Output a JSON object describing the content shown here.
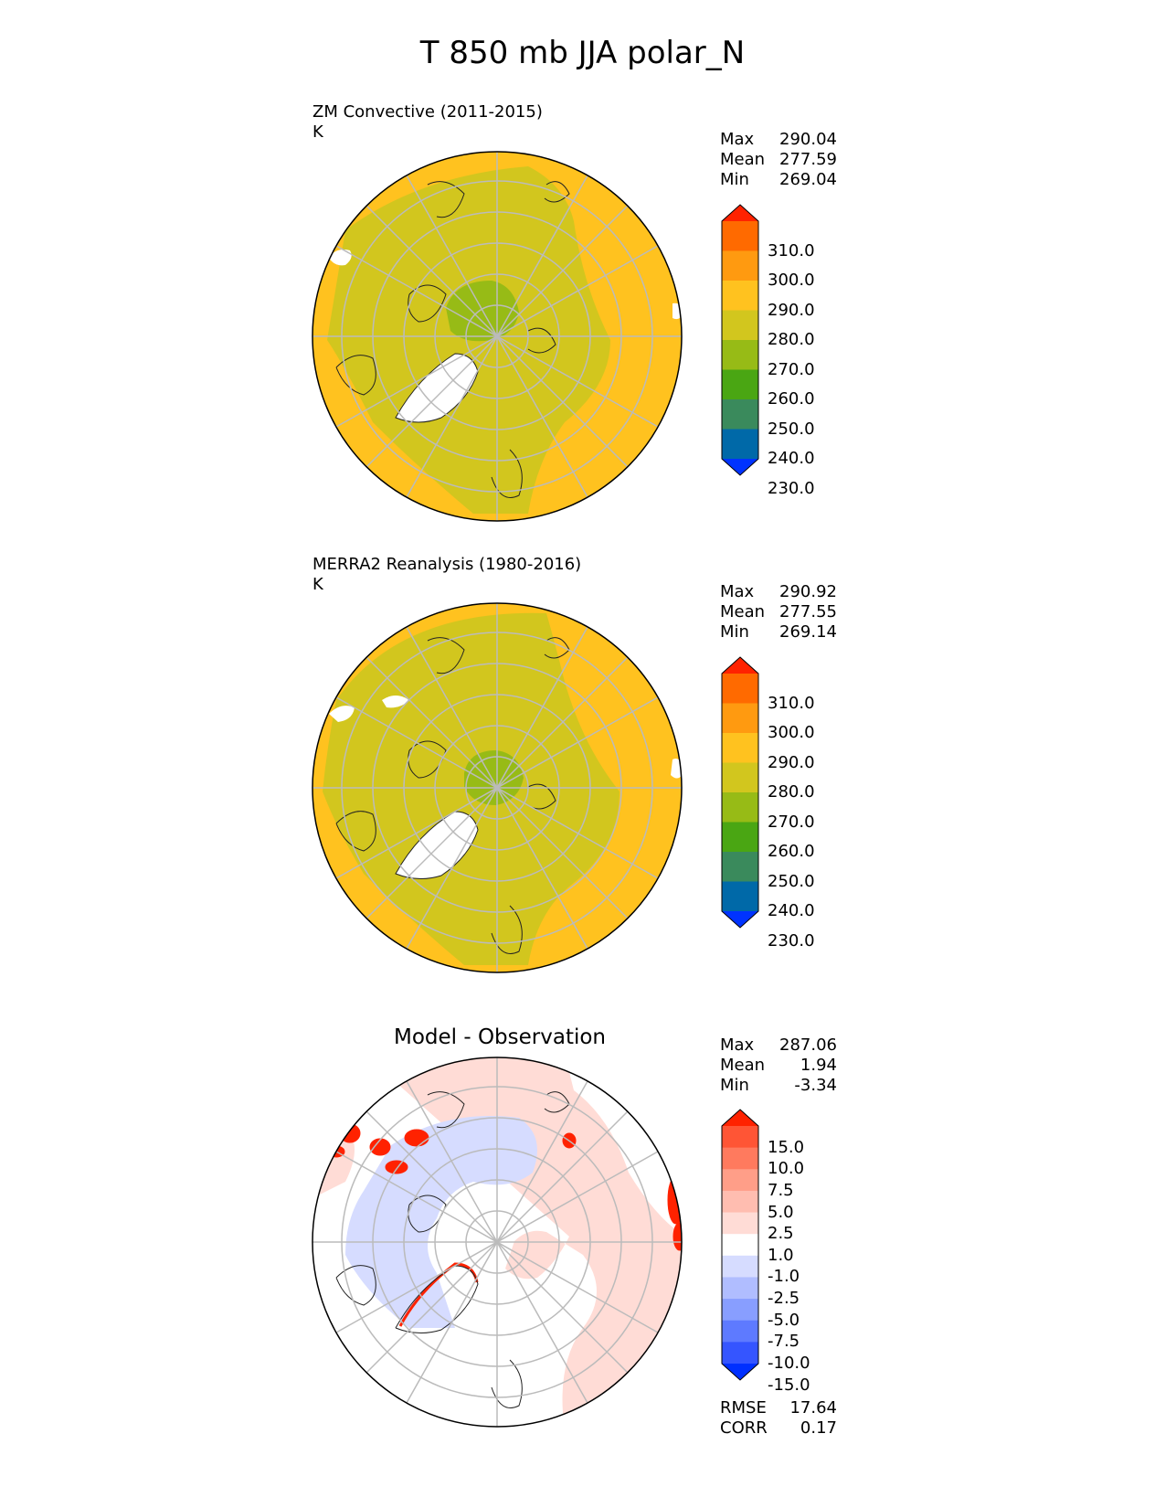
{
  "title": "T 850 mb JJA polar_N",
  "panels": [
    {
      "label": "ZM Convective (2011-2015)",
      "units": "K",
      "stats": [
        {
          "name": "Max",
          "value": "290.04"
        },
        {
          "name": "Mean",
          "value": "277.59"
        },
        {
          "name": "Min",
          "value": "269.04"
        }
      ],
      "colorbar": {
        "ticks": [
          "310.0",
          "300.0",
          "290.0",
          "280.0",
          "270.0",
          "260.0",
          "250.0",
          "240.0",
          "230.0"
        ],
        "colors": [
          "#ff2200",
          "#ff6a00",
          "#ff9a10",
          "#ffc21f",
          "#d2c61e",
          "#97bb16",
          "#4aa613",
          "#3a8a5c",
          "#0069a8",
          "#0033ff"
        ]
      }
    },
    {
      "label": "MERRA2 Reanalysis (1980-2016)",
      "units": "K",
      "stats": [
        {
          "name": "Max",
          "value": "290.92"
        },
        {
          "name": "Mean",
          "value": "277.55"
        },
        {
          "name": "Min",
          "value": "269.14"
        }
      ],
      "colorbar": {
        "ticks": [
          "310.0",
          "300.0",
          "290.0",
          "280.0",
          "270.0",
          "260.0",
          "250.0",
          "240.0",
          "230.0"
        ],
        "colors": [
          "#ff2200",
          "#ff6a00",
          "#ff9a10",
          "#ffc21f",
          "#d2c61e",
          "#97bb16",
          "#4aa613",
          "#3a8a5c",
          "#0069a8",
          "#0033ff"
        ]
      }
    },
    {
      "label": "Model - Observation",
      "stats": [
        {
          "name": "Max",
          "value": "287.06"
        },
        {
          "name": "Mean",
          "value": "1.94"
        },
        {
          "name": "Min",
          "value": "-3.34"
        }
      ],
      "colorbar": {
        "ticks": [
          "15.0",
          "10.0",
          "7.5",
          "5.0",
          "2.5",
          "1.0",
          "-1.0",
          "-2.5",
          "-5.0",
          "-7.5",
          "-10.0",
          "-15.0"
        ],
        "colors": [
          "#ff2200",
          "#ff5535",
          "#ff7a5e",
          "#ff9e88",
          "#ffbdb0",
          "#ffdcd6",
          "#ffffff",
          "#d6dcff",
          "#b0bdff",
          "#889eff",
          "#5e7aff",
          "#3555ff",
          "#0030ff"
        ]
      },
      "footer": [
        {
          "name": "RMSE",
          "value": "17.64"
        },
        {
          "name": "CORR",
          "value": "0.17"
        }
      ]
    }
  ],
  "colors": {
    "polar_inner": "#97bb16",
    "mid_band": "#d2c61e",
    "outer_band": "#ffc21f",
    "diff_pos": "#ffdcd6",
    "diff_neg": "#d6dcff",
    "diff_strong_pos": "#ff2200",
    "grid": "#bbbbbb"
  }
}
